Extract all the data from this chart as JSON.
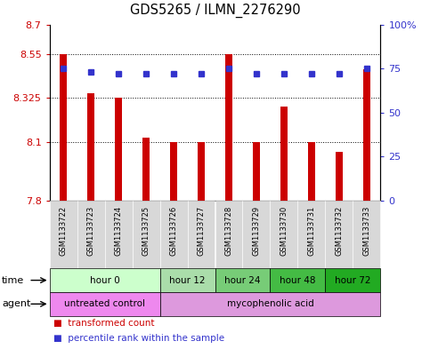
{
  "title": "GDS5265 / ILMN_2276290",
  "samples": [
    "GSM1133722",
    "GSM1133723",
    "GSM1133724",
    "GSM1133725",
    "GSM1133726",
    "GSM1133727",
    "GSM1133728",
    "GSM1133729",
    "GSM1133730",
    "GSM1133731",
    "GSM1133732",
    "GSM1133733"
  ],
  "transformed_count": [
    8.55,
    8.35,
    8.325,
    8.12,
    8.1,
    8.1,
    8.55,
    8.1,
    8.28,
    8.1,
    8.05,
    8.47
  ],
  "percentile_rank": [
    75,
    73,
    72,
    72,
    72,
    72,
    75,
    72,
    72,
    72,
    72,
    75
  ],
  "ylim_left": [
    7.8,
    8.7
  ],
  "ylim_right": [
    0,
    100
  ],
  "yticks_left": [
    7.8,
    8.1,
    8.325,
    8.55,
    8.7
  ],
  "yticks_right": [
    0,
    25,
    50,
    75,
    100
  ],
  "ytick_labels_left": [
    "7.8",
    "8.1",
    "8.325",
    "8.55",
    "8.7"
  ],
  "ytick_labels_right": [
    "0",
    "25",
    "50",
    "75",
    "100%"
  ],
  "hlines": [
    8.1,
    8.325,
    8.55
  ],
  "bar_color": "#cc0000",
  "dot_color": "#3333cc",
  "bar_bottom": 7.8,
  "time_groups": [
    {
      "label": "hour 0",
      "samples": [
        0,
        1,
        2,
        3
      ],
      "color": "#ccffcc"
    },
    {
      "label": "hour 12",
      "samples": [
        4,
        5
      ],
      "color": "#aaddaa"
    },
    {
      "label": "hour 24",
      "samples": [
        6,
        7
      ],
      "color": "#77cc77"
    },
    {
      "label": "hour 48",
      "samples": [
        8,
        9
      ],
      "color": "#44bb44"
    },
    {
      "label": "hour 72",
      "samples": [
        10,
        11
      ],
      "color": "#22aa22"
    }
  ],
  "agent_groups": [
    {
      "label": "untreated control",
      "samples": [
        0,
        1,
        2,
        3
      ],
      "color": "#ee88ee"
    },
    {
      "label": "mycophenolic acid",
      "samples": [
        4,
        5,
        6,
        7,
        8,
        9,
        10,
        11
      ],
      "color": "#dd99dd"
    }
  ],
  "legend_items": [
    {
      "label": "transformed count",
      "color": "#cc0000"
    },
    {
      "label": "percentile rank within the sample",
      "color": "#3333cc"
    }
  ],
  "title_fontsize": 10.5,
  "tick_fontsize": 8,
  "sample_fontsize": 6,
  "row_fontsize": 7.5,
  "legend_fontsize": 7.5
}
